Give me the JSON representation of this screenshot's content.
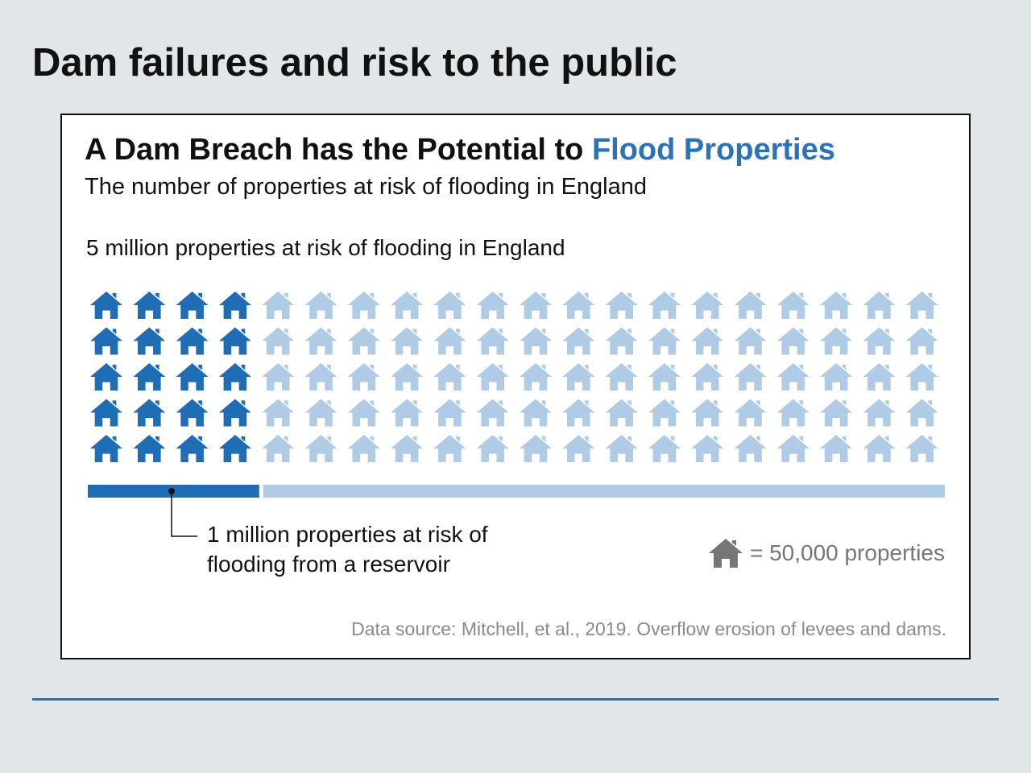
{
  "slide": {
    "title": "Dam failures and risk to the public"
  },
  "card": {
    "heading_main": "A Dam Breach has the Potential to ",
    "heading_accent": "Flood Properties",
    "subtitle": "The number of properties at risk of flooding in England",
    "total_label": "5 million properties at risk of flooding in England",
    "callout_line1": "1 million properties at risk of",
    "callout_line2": "flooding from a reservoir",
    "legend_text": "= 50,000 properties",
    "legend_icon": "house-icon",
    "source": "Data source: Mitchell, et al., 2019. Overflow erosion of levees and dams."
  },
  "colors": {
    "accent": "#2b73b9",
    "highlight": "#1f6db5",
    "muted": "#afcbe5",
    "legend_icon": "#767676",
    "background": "#e1e7e8"
  },
  "chart_data": {
    "type": "pictogram",
    "unit": 50000,
    "unit_label": "properties",
    "rows": 5,
    "columns": 20,
    "total_icons": 100,
    "highlighted_icons": 20,
    "series": [
      {
        "name": "1 million properties at risk of flooding from a reservoir",
        "value": 1000000
      },
      {
        "name": "5 million properties at risk of flooding in England",
        "value": 5000000
      }
    ]
  }
}
